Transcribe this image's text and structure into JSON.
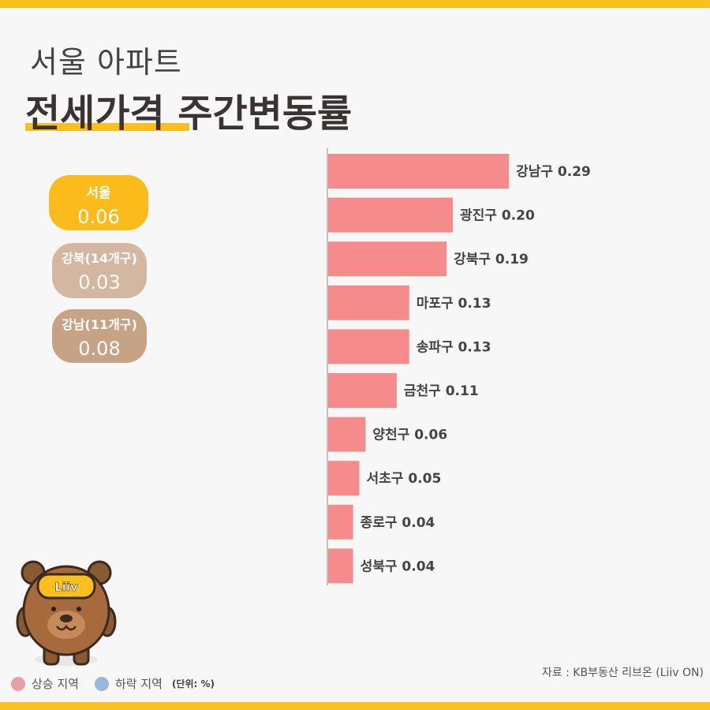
{
  "title": {
    "sub": "서울 아파트",
    "main": "전세가격 주간변동률"
  },
  "summary": {
    "seoul": {
      "label": "서울",
      "value": "0.06"
    },
    "north": {
      "label": "강북(14개구)",
      "value": "0.03"
    },
    "south": {
      "label": "강남(11개구)",
      "value": "0.08"
    }
  },
  "chart_data": {
    "type": "bar",
    "orientation": "horizontal",
    "categories": [
      "강남구",
      "광진구",
      "강북구",
      "마포구",
      "송파구",
      "금천구",
      "양천구",
      "서초구",
      "종로구",
      "성북구"
    ],
    "values": [
      0.29,
      0.2,
      0.19,
      0.13,
      0.13,
      0.11,
      0.06,
      0.05,
      0.04,
      0.04
    ],
    "bar_color": "#f58b8b"
  },
  "legend": {
    "up": "상승 지역",
    "down": "하락 지역",
    "unit": "(단위: %)"
  },
  "colors": {
    "up": "#e9a0a6",
    "down": "#9ab6d9",
    "accent": "#fbbf1e"
  },
  "mascot": {
    "text": "Liiv"
  },
  "source": "자료 : KB부동산 리브온 (Liiv ON)"
}
